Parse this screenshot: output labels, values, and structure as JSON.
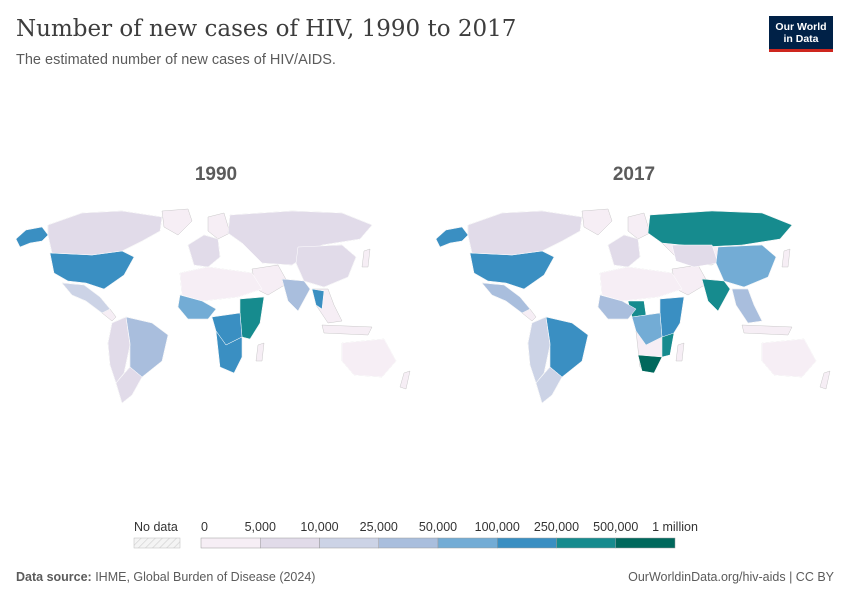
{
  "header": {
    "title": "Number of new cases of HIV, 1990 to 2017",
    "subtitle": "The estimated number of new cases of HIV/AIDS.",
    "logo_line1": "Our World",
    "logo_line2": "in Data"
  },
  "chart_data": {
    "type": "choropleth-map",
    "title": "Number of new cases of HIV, 1990 to 2017",
    "panels": [
      {
        "year_label": "1990",
        "regions": [
          {
            "name": "United States",
            "bin": 5
          },
          {
            "name": "Canada",
            "bin": 1
          },
          {
            "name": "Alaska",
            "bin": 5
          },
          {
            "name": "Mexico",
            "bin": 2
          },
          {
            "name": "Brazil",
            "bin": 3
          },
          {
            "name": "Andean South America",
            "bin": 1
          },
          {
            "name": "Southern Cone",
            "bin": 1
          },
          {
            "name": "Russia and Central Asia",
            "bin": 1
          },
          {
            "name": "China",
            "bin": 1
          },
          {
            "name": "India",
            "bin": 3
          },
          {
            "name": "Thailand",
            "bin": 5
          },
          {
            "name": "Western Europe",
            "bin": 1
          },
          {
            "name": "North Africa",
            "bin": 0
          },
          {
            "name": "West Africa",
            "bin": 4
          },
          {
            "name": "East Africa",
            "bin": 6
          },
          {
            "name": "Central Africa",
            "bin": 5
          },
          {
            "name": "Southern Africa",
            "bin": 5
          },
          {
            "name": "Australia",
            "bin": 0
          }
        ]
      },
      {
        "year_label": "2017",
        "regions": [
          {
            "name": "United States",
            "bin": 5
          },
          {
            "name": "Canada",
            "bin": 1
          },
          {
            "name": "Alaska",
            "bin": 5
          },
          {
            "name": "Mexico",
            "bin": 3
          },
          {
            "name": "Brazil",
            "bin": 5
          },
          {
            "name": "Andean South America",
            "bin": 2
          },
          {
            "name": "Southern Cone",
            "bin": 2
          },
          {
            "name": "Russia",
            "bin": 6
          },
          {
            "name": "Central Asia",
            "bin": 1
          },
          {
            "name": "China",
            "bin": 4
          },
          {
            "name": "India",
            "bin": 6
          },
          {
            "name": "Southeast Asia",
            "bin": 3
          },
          {
            "name": "Western Europe",
            "bin": 1
          },
          {
            "name": "North Africa",
            "bin": 0
          },
          {
            "name": "Nigeria",
            "bin": 6
          },
          {
            "name": "West Africa",
            "bin": 3
          },
          {
            "name": "East Africa",
            "bin": 5
          },
          {
            "name": "Central Africa",
            "bin": 4
          },
          {
            "name": "Mozambique",
            "bin": 6
          },
          {
            "name": "South Africa",
            "bin": 7
          },
          {
            "name": "Australia",
            "bin": 0
          }
        ]
      }
    ],
    "legend": {
      "no_data_label": "No data",
      "no_data_color": "#f4f4f4",
      "ticks": [
        "0",
        "5,000",
        "10,000",
        "25,000",
        "50,000",
        "100,000",
        "250,000",
        "500,000",
        "1 million"
      ],
      "colors": [
        "#f6eef5",
        "#e1dbe9",
        "#ccd3e6",
        "#a9bedd",
        "#73acd5",
        "#3a8fc2",
        "#168b8e",
        "#00685c"
      ]
    }
  },
  "footer": {
    "source_label": "Data source:",
    "source_text": " IHME, Global Burden of Disease (2024)",
    "url_license": "OurWorldinData.org/hiv-aids | CC BY"
  }
}
